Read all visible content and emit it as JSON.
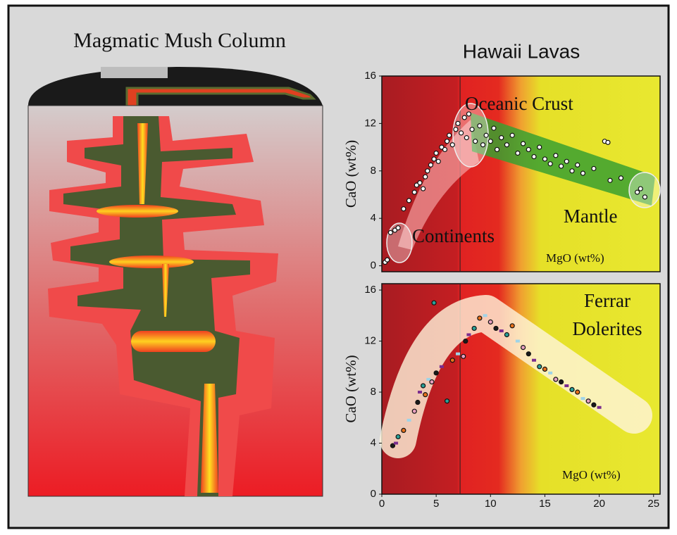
{
  "diagram": {
    "title": "Magmatic Mush Column"
  },
  "chart_data": [
    {
      "type": "scatter",
      "title": "Hawaii Lavas",
      "y_label": "CaO (wt%)",
      "annotations": [
        {
          "text": "Oceanic Crust"
        },
        {
          "text": "Continents"
        },
        {
          "text": "Mantle"
        },
        {
          "text": "MgO (wt%)"
        }
      ],
      "x": [
        0.3,
        0.5,
        0.8,
        1.2,
        1.5,
        2,
        2.5,
        3,
        3.2,
        3.5,
        3.8,
        4,
        4.2,
        4.5,
        4.8,
        5,
        5.2,
        5.5,
        5.8,
        6,
        6.2,
        6.5,
        6.8,
        7,
        7.3,
        7.6,
        7.8,
        8,
        8.3,
        8.6,
        9,
        9.3,
        9.6,
        10,
        10.3,
        10.6,
        11,
        11.5,
        12,
        12.5,
        13,
        13.5,
        14,
        14.5,
        15,
        15.5,
        16,
        16.5,
        17,
        17.5,
        18,
        18.5,
        19.5,
        20.5,
        20.8,
        21,
        22,
        23.5,
        23.8,
        24.2
      ],
      "values": [
        0.3,
        0.5,
        2.8,
        3,
        3.2,
        4.8,
        5.5,
        6.2,
        6.8,
        7,
        6.5,
        7.5,
        8,
        8.5,
        9,
        9.5,
        8.8,
        10,
        9.8,
        10.5,
        11,
        10.2,
        11.5,
        12,
        11.2,
        12.5,
        10.8,
        12.8,
        11.5,
        10.5,
        11.8,
        10.2,
        11,
        10.5,
        11.6,
        9.8,
        10.8,
        10.2,
        11,
        9.5,
        10.3,
        9.8,
        9.2,
        10,
        9,
        8.6,
        9.3,
        8.4,
        8.8,
        8,
        8.5,
        7.8,
        8.2,
        10.5,
        10.4,
        7.2,
        7.4,
        6.2,
        6.5,
        5.8
      ],
      "marker_colors": [
        "#ffffff"
      ],
      "xlim": [
        0,
        25.6
      ],
      "ylim": [
        -0.5,
        16
      ],
      "yticks": [
        0,
        4,
        8,
        12,
        16
      ],
      "reference_x": 7.2
    },
    {
      "type": "scatter",
      "y_label": "CaO (wt%)",
      "annotations": [
        {
          "text": "Ferrar"
        },
        {
          "text": "Dolerites"
        },
        {
          "text": "MgO (wt%)"
        }
      ],
      "x": [
        1,
        1.3,
        1.5,
        2,
        2.5,
        3,
        3.3,
        3.5,
        3.8,
        4,
        4.3,
        4.6,
        5,
        5.5,
        6,
        6.5,
        7,
        7.5,
        7.7,
        8,
        8.5,
        9,
        9.5,
        10,
        10.5,
        11,
        11.5,
        12,
        12.5,
        13,
        13.5,
        14,
        14.5,
        15,
        15.5,
        16,
        16.5,
        17,
        17.5,
        18,
        18.5,
        19,
        19.5,
        20,
        4.8
      ],
      "values": [
        3.8,
        4,
        4.5,
        5,
        5.8,
        6.5,
        7.2,
        8,
        8.5,
        7.8,
        9,
        8.8,
        9.5,
        10,
        7.3,
        10.5,
        11,
        10.8,
        12,
        12.5,
        13,
        13.8,
        14,
        13.5,
        13,
        12.8,
        12.5,
        13.2,
        12,
        11.5,
        11,
        10.5,
        10,
        9.8,
        9.5,
        9,
        8.8,
        8.5,
        8.2,
        8,
        7.5,
        7.3,
        7,
        6.8,
        15
      ],
      "marker_colors": [
        "#1a1a1a",
        "#7b2d8e",
        "#2aa198",
        "#e8711c",
        "#9fd4e8",
        "#e8a0c0"
      ],
      "xlim": [
        0,
        25.6
      ],
      "ylim": [
        0,
        16.5
      ],
      "xticks": [
        0,
        5,
        10,
        15,
        20,
        25
      ],
      "yticks": [
        0,
        4,
        8,
        12,
        16
      ],
      "reference_x": 7.2
    }
  ]
}
